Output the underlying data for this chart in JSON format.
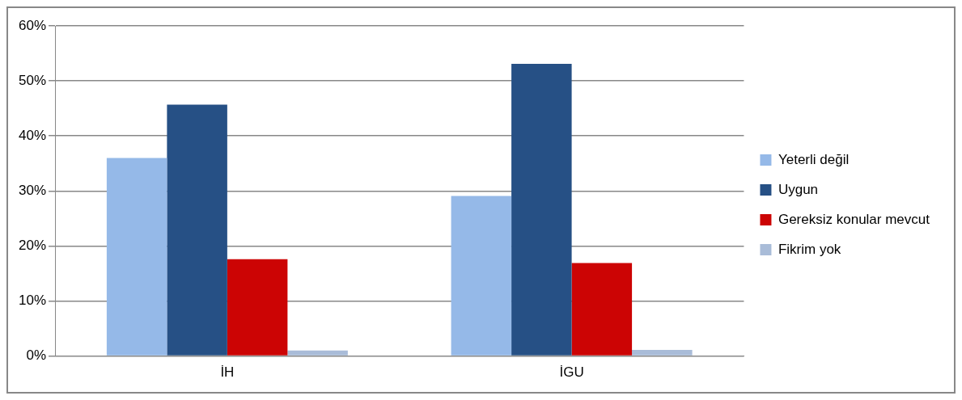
{
  "chart_data": {
    "type": "bar",
    "categories": [
      "İH",
      "İGU"
    ],
    "series": [
      {
        "name": "Yeterli değil",
        "color": "#95b9e8",
        "values": [
          36.0,
          29.1
        ]
      },
      {
        "name": "Uygun",
        "color": "#265085",
        "values": [
          45.7,
          53.1
        ]
      },
      {
        "name": "Gereksiz konular mevcut",
        "color": "#cc0404",
        "values": [
          17.6,
          16.9
        ]
      },
      {
        "name": "Fikrim yok",
        "color": "#a9bcd8",
        "values": [
          1.0,
          1.1
        ]
      }
    ],
    "ylim": [
      0,
      60
    ],
    "yticks": [
      {
        "value": 0,
        "label": "0%"
      },
      {
        "value": 10,
        "label": "10%"
      },
      {
        "value": 20,
        "label": "20%"
      },
      {
        "value": 30,
        "label": "30%"
      },
      {
        "value": 40,
        "label": "40%"
      },
      {
        "value": 50,
        "label": "50%"
      },
      {
        "value": 60,
        "label": "60%"
      }
    ],
    "grid": "y",
    "legend": "right"
  }
}
